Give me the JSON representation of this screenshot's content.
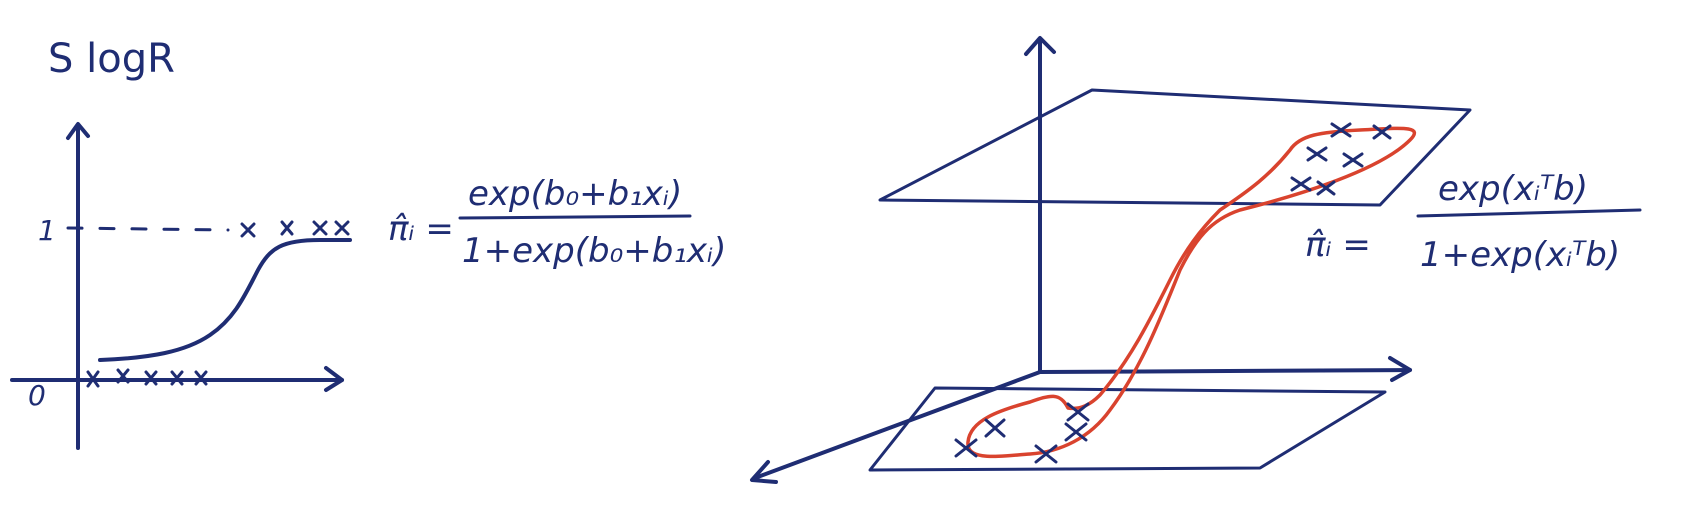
{
  "left_panel": {
    "title": "S logR",
    "y_tick_one": "1",
    "origin": "0",
    "formula_lhs": "π̂ᵢ =",
    "formula_numerator": "exp(b₀+b₁xᵢ)",
    "formula_denominator": "1+exp(b₀+b₁xᵢ)"
  },
  "right_panel": {
    "formula_lhs": "π̂ᵢ =",
    "formula_numerator": "exp(xᵢᵀb)",
    "formula_denominator": "1+exp(xᵢᵀb)"
  },
  "colors": {
    "ink": "#1f2d73",
    "highlight": "#d9432e"
  }
}
